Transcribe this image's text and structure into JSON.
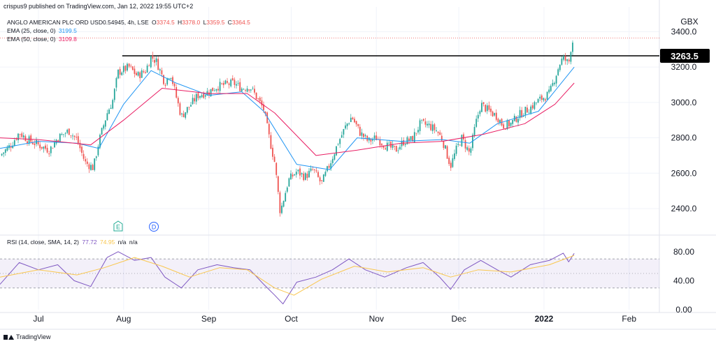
{
  "caption": "crispus9 published on TradingView.com, Jan 12, 2022 19:55 UTC+2",
  "symbol_legend": {
    "label": "ANGLO AMERICAN PLC ORD USD0.54945, 4h, LSE",
    "o_label": "O",
    "o": "3374.5",
    "h_label": "H",
    "h": "3378.0",
    "l_label": "L",
    "l": "3359.5",
    "c_label": "C",
    "c": "3364.5"
  },
  "ema_legends": [
    {
      "label": "EMA (25, close, 0)",
      "value": "3199.5",
      "color": "#2196f3"
    },
    {
      "label": "EMA (50, close, 0)",
      "value": "3109.8",
      "color": "#e91e63"
    }
  ],
  "rsi_legend": {
    "label": "RSI (14, close, SMA, 14, 2)",
    "rsi": "77.72",
    "rsi_color": "#7e57c2",
    "sma": "74.95",
    "sma_color": "#f9c74f",
    "na1": "n/a",
    "na2": "n/a"
  },
  "currency": "GBX",
  "footer_brand": "TradingView",
  "price_badge": "3263.5",
  "event_markers": [
    {
      "symbol": "E",
      "x": "2021-07-30",
      "color": "#22ab94"
    },
    {
      "symbol": "D",
      "x": "2021-08-12",
      "color": "#2962ff"
    }
  ],
  "colors": {
    "up": "#26a69a",
    "down": "#ef5350",
    "grid": "#f0f3fa",
    "rsi_band": "#7e57c2"
  },
  "chart_data": [
    {
      "type": "candlestick",
      "title": "",
      "x_axis": {
        "range": [
          "2021-06-17",
          "2022-02-12"
        ],
        "ticks": [
          {
            "x": "2021-07-01",
            "label": "Jul"
          },
          {
            "x": "2021-08-01",
            "label": "Aug"
          },
          {
            "x": "2021-09-01",
            "label": "Sep"
          },
          {
            "x": "2021-10-01",
            "label": "Oct"
          },
          {
            "x": "2021-11-01",
            "label": "Nov"
          },
          {
            "x": "2021-12-01",
            "label": "Dec"
          },
          {
            "x": "2022-01-01",
            "label": "2022"
          },
          {
            "x": "2022-02-01",
            "label": "Feb"
          }
        ]
      },
      "y_axis": {
        "range": [
          2270,
          3500
        ],
        "ticks": [
          {
            "y": 2400,
            "label": "2400.0"
          },
          {
            "y": 2600,
            "label": "2600.0"
          },
          {
            "y": 2800,
            "label": "2800.0"
          },
          {
            "y": 3000,
            "label": "3000.0"
          },
          {
            "y": 3200,
            "label": "3200.0"
          },
          {
            "y": 3400,
            "label": "3400.0"
          }
        ]
      },
      "grid": true,
      "close_path": [
        [
          "2021-06-17",
          2700
        ],
        [
          "2021-06-21",
          2760
        ],
        [
          "2021-06-24",
          2830
        ],
        [
          "2021-06-27",
          2790
        ],
        [
          "2021-07-01",
          2760
        ],
        [
          "2021-07-05",
          2730
        ],
        [
          "2021-07-08",
          2800
        ],
        [
          "2021-07-12",
          2840
        ],
        [
          "2021-07-15",
          2790
        ],
        [
          "2021-07-18",
          2660
        ],
        [
          "2021-07-21",
          2630
        ],
        [
          "2021-07-23",
          2780
        ],
        [
          "2021-07-26",
          2940
        ],
        [
          "2021-07-28",
          3010
        ],
        [
          "2021-07-30",
          3170
        ],
        [
          "2021-08-03",
          3200
        ],
        [
          "2021-08-06",
          3150
        ],
        [
          "2021-08-09",
          3180
        ],
        [
          "2021-08-11",
          3260
        ],
        [
          "2021-08-13",
          3230
        ],
        [
          "2021-08-16",
          3110
        ],
        [
          "2021-08-18",
          3170
        ],
        [
          "2021-08-20",
          3040
        ],
        [
          "2021-08-22",
          2920
        ],
        [
          "2021-08-25",
          2980
        ],
        [
          "2021-08-28",
          3040
        ],
        [
          "2021-09-01",
          3060
        ],
        [
          "2021-09-04",
          3090
        ],
        [
          "2021-09-07",
          3100
        ],
        [
          "2021-09-10",
          3110
        ],
        [
          "2021-09-13",
          3080
        ],
        [
          "2021-09-16",
          3090
        ],
        [
          "2021-09-18",
          3040
        ],
        [
          "2021-09-21",
          2960
        ],
        [
          "2021-09-23",
          2800
        ],
        [
          "2021-09-25",
          2660
        ],
        [
          "2021-09-27",
          2380
        ],
        [
          "2021-09-30",
          2560
        ],
        [
          "2021-10-03",
          2610
        ],
        [
          "2021-10-06",
          2580
        ],
        [
          "2021-10-09",
          2620
        ],
        [
          "2021-10-12",
          2540
        ],
        [
          "2021-10-15",
          2650
        ],
        [
          "2021-10-18",
          2770
        ],
        [
          "2021-10-21",
          2870
        ],
        [
          "2021-10-23",
          2920
        ],
        [
          "2021-10-26",
          2830
        ],
        [
          "2021-10-29",
          2780
        ],
        [
          "2021-11-01",
          2800
        ],
        [
          "2021-11-04",
          2760
        ],
        [
          "2021-11-08",
          2730
        ],
        [
          "2021-11-11",
          2780
        ],
        [
          "2021-11-14",
          2790
        ],
        [
          "2021-11-17",
          2880
        ],
        [
          "2021-11-20",
          2870
        ],
        [
          "2021-11-23",
          2840
        ],
        [
          "2021-11-25",
          2790
        ],
        [
          "2021-11-28",
          2640
        ],
        [
          "2021-11-30",
          2730
        ],
        [
          "2021-12-02",
          2800
        ],
        [
          "2021-12-05",
          2710
        ],
        [
          "2021-12-07",
          2870
        ],
        [
          "2021-12-09",
          2990
        ],
        [
          "2021-12-12",
          2950
        ],
        [
          "2021-12-15",
          2920
        ],
        [
          "2021-12-17",
          2870
        ],
        [
          "2021-12-20",
          2880
        ],
        [
          "2021-12-23",
          2930
        ],
        [
          "2021-12-27",
          2970
        ],
        [
          "2021-12-30",
          3010
        ],
        [
          "2022-01-03",
          3050
        ],
        [
          "2022-01-05",
          3140
        ],
        [
          "2022-01-07",
          3230
        ],
        [
          "2022-01-08",
          3250
        ],
        [
          "2022-01-10",
          3220
        ],
        [
          "2022-01-11",
          3330
        ],
        [
          "2022-01-12",
          3364.5
        ]
      ],
      "series": [
        {
          "name": "EMA (25, close, 0)",
          "color": "#2196f3",
          "points": [
            [
              "2021-06-17",
              2740
            ],
            [
              "2021-07-01",
              2780
            ],
            [
              "2021-07-15",
              2770
            ],
            [
              "2021-07-23",
              2740
            ],
            [
              "2021-08-01",
              2990
            ],
            [
              "2021-08-11",
              3180
            ],
            [
              "2021-08-20",
              3110
            ],
            [
              "2021-09-01",
              3040
            ],
            [
              "2021-09-13",
              3060
            ],
            [
              "2021-09-21",
              2950
            ],
            [
              "2021-10-03",
              2650
            ],
            [
              "2021-10-15",
              2620
            ],
            [
              "2021-10-25",
              2800
            ],
            [
              "2021-11-10",
              2780
            ],
            [
              "2021-11-25",
              2790
            ],
            [
              "2021-12-05",
              2770
            ],
            [
              "2021-12-15",
              2880
            ],
            [
              "2021-12-30",
              2950
            ],
            [
              "2022-01-12",
              3199.5
            ]
          ]
        },
        {
          "name": "EMA (50, close, 0)",
          "color": "#e91e63",
          "points": [
            [
              "2021-06-17",
              2800
            ],
            [
              "2021-07-01",
              2790
            ],
            [
              "2021-07-20",
              2760
            ],
            [
              "2021-08-01",
              2900
            ],
            [
              "2021-08-15",
              3080
            ],
            [
              "2021-09-01",
              3050
            ],
            [
              "2021-09-15",
              3050
            ],
            [
              "2021-09-25",
              2940
            ],
            [
              "2021-10-10",
              2700
            ],
            [
              "2021-10-25",
              2730
            ],
            [
              "2021-11-10",
              2770
            ],
            [
              "2021-11-25",
              2780
            ],
            [
              "2021-12-10",
              2820
            ],
            [
              "2021-12-25",
              2880
            ],
            [
              "2022-01-05",
              2990
            ],
            [
              "2022-01-12",
              3109.8
            ]
          ]
        }
      ],
      "horizontal_levels": [
        {
          "y": 3263.5,
          "from": "2021-08-01",
          "label": "3263.5"
        },
        {
          "y": 3364.5,
          "from": "2021-06-17",
          "style": "dotted"
        }
      ],
      "last_price": 3364.5
    },
    {
      "type": "line",
      "title": "",
      "y_axis": {
        "range": [
          0,
          100
        ],
        "ticks": [
          {
            "y": 0,
            "label": "0.00"
          },
          {
            "y": 40,
            "label": "40.00"
          },
          {
            "y": 80,
            "label": "80.00"
          }
        ]
      },
      "band": [
        30,
        70
      ],
      "mid_line": 50,
      "series": [
        {
          "name": "RSI",
          "color": "#7e57c2",
          "points": [
            [
              "2021-06-17",
              35
            ],
            [
              "2021-06-24",
              65
            ],
            [
              "2021-07-01",
              55
            ],
            [
              "2021-07-08",
              62
            ],
            [
              "2021-07-14",
              40
            ],
            [
              "2021-07-20",
              32
            ],
            [
              "2021-07-26",
              72
            ],
            [
              "2021-07-30",
              80
            ],
            [
              "2021-08-05",
              68
            ],
            [
              "2021-08-11",
              72
            ],
            [
              "2021-08-16",
              45
            ],
            [
              "2021-08-22",
              30
            ],
            [
              "2021-08-28",
              55
            ],
            [
              "2021-09-04",
              62
            ],
            [
              "2021-09-10",
              58
            ],
            [
              "2021-09-16",
              55
            ],
            [
              "2021-09-21",
              35
            ],
            [
              "2021-09-25",
              20
            ],
            [
              "2021-09-28",
              8
            ],
            [
              "2021-10-03",
              38
            ],
            [
              "2021-10-10",
              45
            ],
            [
              "2021-10-16",
              55
            ],
            [
              "2021-10-22",
              70
            ],
            [
              "2021-10-28",
              55
            ],
            [
              "2021-11-04",
              45
            ],
            [
              "2021-11-12",
              58
            ],
            [
              "2021-11-18",
              65
            ],
            [
              "2021-11-24",
              45
            ],
            [
              "2021-11-28",
              28
            ],
            [
              "2021-12-03",
              55
            ],
            [
              "2021-12-09",
              68
            ],
            [
              "2021-12-15",
              55
            ],
            [
              "2021-12-20",
              45
            ],
            [
              "2021-12-27",
              62
            ],
            [
              "2022-01-03",
              68
            ],
            [
              "2022-01-08",
              78
            ],
            [
              "2022-01-10",
              66
            ],
            [
              "2022-01-12",
              77.72
            ]
          ]
        },
        {
          "name": "SMA",
          "color": "#f9c74f",
          "points": [
            [
              "2021-06-17",
              45
            ],
            [
              "2021-07-01",
              55
            ],
            [
              "2021-07-15",
              48
            ],
            [
              "2021-07-25",
              58
            ],
            [
              "2021-08-05",
              72
            ],
            [
              "2021-08-15",
              60
            ],
            [
              "2021-08-25",
              45
            ],
            [
              "2021-09-05",
              58
            ],
            [
              "2021-09-15",
              55
            ],
            [
              "2021-09-25",
              30
            ],
            [
              "2021-10-02",
              20
            ],
            [
              "2021-10-12",
              42
            ],
            [
              "2021-10-24",
              60
            ],
            [
              "2021-11-05",
              52
            ],
            [
              "2021-11-18",
              58
            ],
            [
              "2021-11-28",
              45
            ],
            [
              "2021-12-08",
              55
            ],
            [
              "2021-12-20",
              52
            ],
            [
              "2022-01-03",
              62
            ],
            [
              "2022-01-12",
              74.95
            ]
          ]
        }
      ]
    }
  ]
}
